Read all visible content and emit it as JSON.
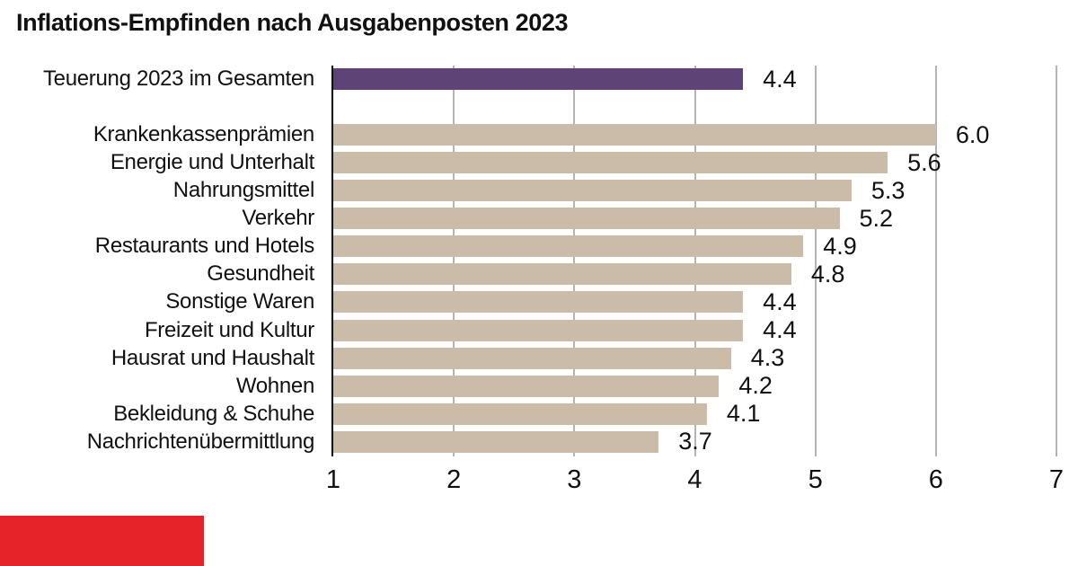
{
  "title": "Inflations-Empfinden nach Ausgabenposten 2023",
  "chart_data": {
    "type": "bar",
    "orientation": "horizontal",
    "title": "Inflations-Empfinden nach Ausgabenposten 2023",
    "xlim": [
      1,
      7
    ],
    "x_ticks": [
      "1",
      "2",
      "3",
      "4",
      "5",
      "6",
      "7"
    ],
    "grid": "vertical",
    "legend": "none",
    "highlight_row": {
      "label": "Teuerung 2023 im Gesamten",
      "value": 4.4,
      "value_label": "4.4",
      "color": "#5e4377"
    },
    "categories": [
      "Krankenkassenprämien",
      "Energie und Unterhalt",
      "Nahrungsmittel",
      "Verkehr",
      "Restaurants und Hotels",
      "Gesundheit",
      "Sonstige Waren",
      "Freizeit und Kultur",
      "Hausrat und Haushalt",
      "Wohnen",
      "Bekleidung & Schuhe",
      "Nachrichtenübermittlung"
    ],
    "values": [
      6.0,
      5.6,
      5.3,
      5.2,
      4.9,
      4.8,
      4.4,
      4.4,
      4.3,
      4.2,
      4.1,
      3.7
    ],
    "value_labels": [
      "6.0",
      "5.6",
      "5.3",
      "5.2",
      "4.9",
      "4.8",
      "4.4",
      "4.4",
      "4.3",
      "4.2",
      "4.1",
      "3.7"
    ],
    "bar_color": "#cbbca9",
    "gridline_color": "#b3b3b3",
    "axis_color": "#000000",
    "text_color": "#111111"
  },
  "logo": {
    "label": "red-brand-block",
    "color": "#e52329"
  }
}
